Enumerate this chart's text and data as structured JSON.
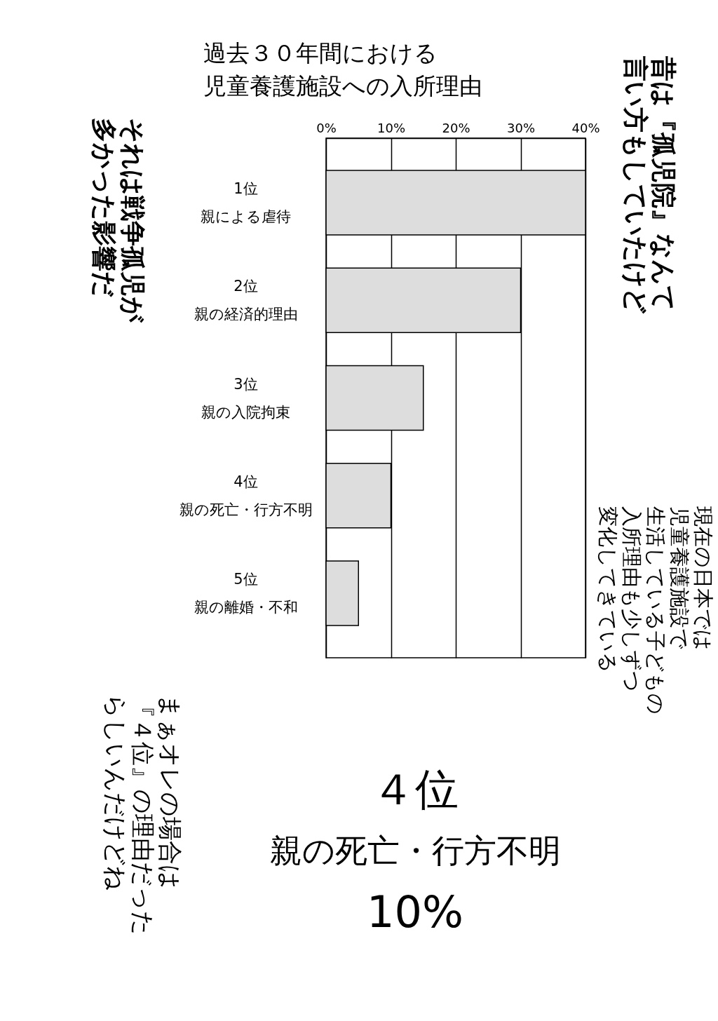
{
  "chart_data": {
    "type": "bar",
    "orientation": "horizontal",
    "title": "過去３０年間における児童養護施設への入所理由",
    "categories": [
      "1位親による虐待",
      "2位親の経済的理由",
      "3位親の入院拘束",
      "4位親の死亡・行方不明",
      "5位親の離婚・不和"
    ],
    "values": [
      40,
      30,
      15,
      10,
      5
    ],
    "color": "#dddddd",
    "xlim": [
      0,
      40
    ],
    "xticks": [
      {
        "value": 0,
        "label": "0%"
      },
      {
        "value": 10,
        "label": "10%"
      },
      {
        "value": 20,
        "label": "20%"
      },
      {
        "value": 30,
        "label": "30%"
      },
      {
        "value": 40,
        "label": "40%"
      }
    ],
    "grid": "x",
    "annotations": [
      "昔は『孤児院』なんて言い方もしていたけど",
      "それは戦争孤児が多かった影響だ",
      "現在の日本では児童養護施設で生活している子どもの入所理由も少しずつ変化してきている",
      "まぁオレの場合は『４位』の理由だったらしいんだけどね",
      "４位親の死亡・行方不明10%"
    ]
  }
}
